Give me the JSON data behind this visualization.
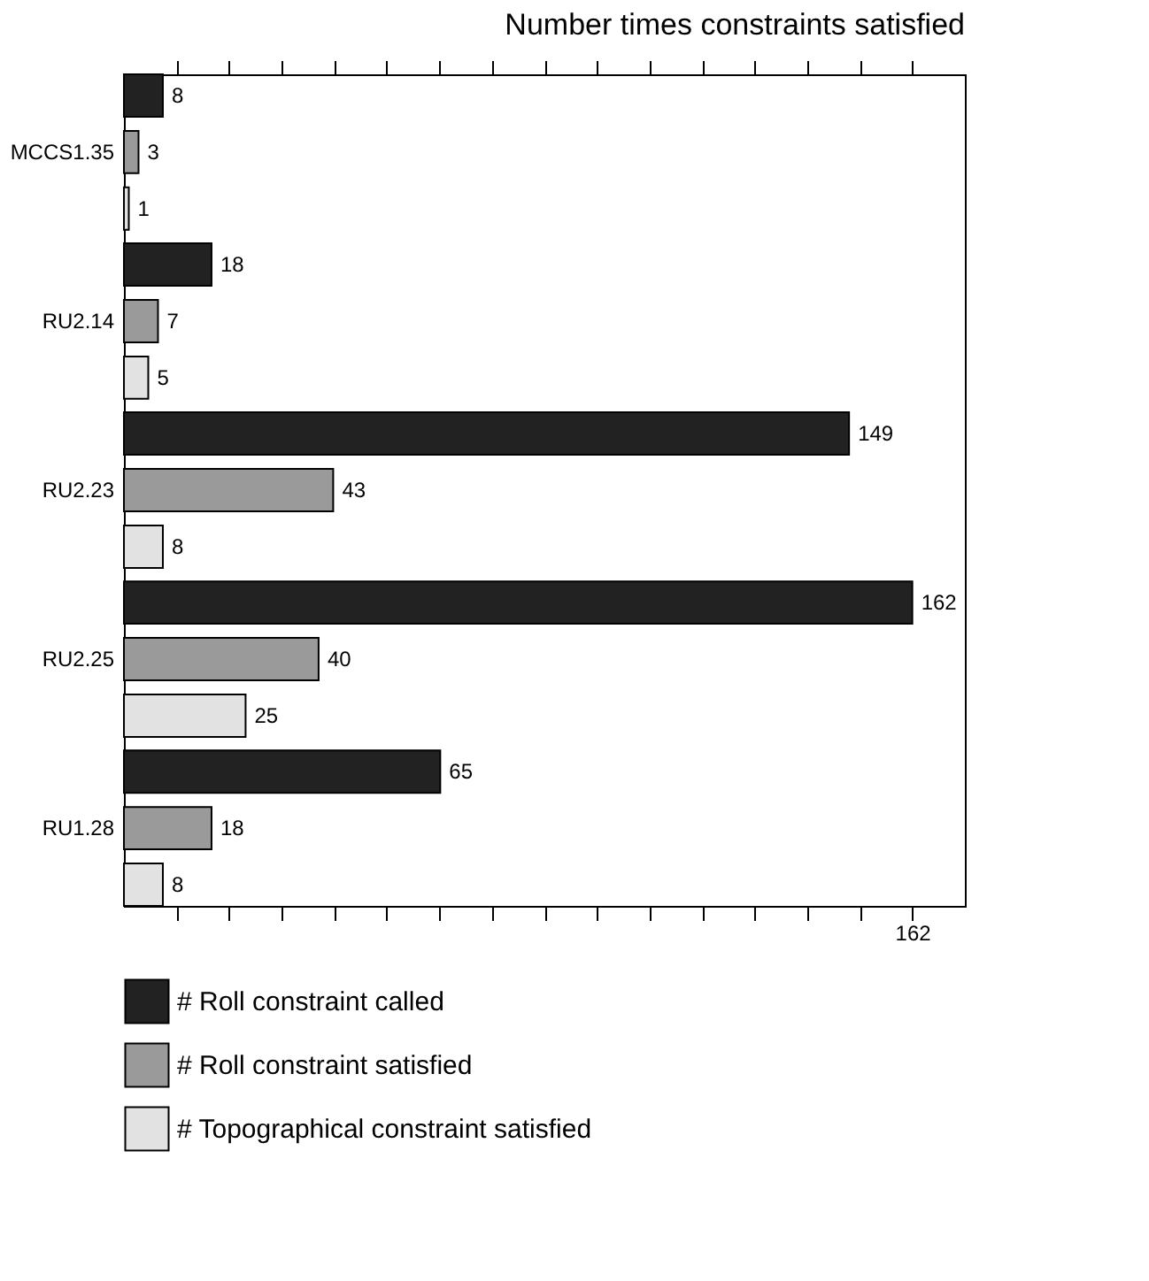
{
  "chart_data": {
    "type": "bar",
    "orientation": "horizontal",
    "title": "Number times constraints satisfied",
    "categories": [
      "MCCS1.35",
      "RU2.14",
      "RU2.23",
      "RU2.25",
      "RU1.28"
    ],
    "series": [
      {
        "name": "# Roll constraint called",
        "color": "#222222",
        "values": [
          8,
          18,
          149,
          162,
          65
        ]
      },
      {
        "name": "# Roll constraint satisfied",
        "color": "#9a9a9a",
        "values": [
          3,
          7,
          43,
          40,
          18
        ]
      },
      {
        "name": "# Topographical constraint satisfied",
        "color": "#e2e2e2",
        "values": [
          1,
          5,
          8,
          25,
          8
        ]
      }
    ],
    "xlim": [
      0,
      172.8
    ],
    "xticks": [
      {
        "value": 10.8,
        "label": null
      },
      {
        "value": 21.6,
        "label": null
      },
      {
        "value": 32.4,
        "label": null
      },
      {
        "value": 43.2,
        "label": null
      },
      {
        "value": 54,
        "label": null
      },
      {
        "value": 64.8,
        "label": null
      },
      {
        "value": 75.6,
        "label": null
      },
      {
        "value": 86.4,
        "label": null
      },
      {
        "value": 97.2,
        "label": null
      },
      {
        "value": 108,
        "label": null
      },
      {
        "value": 118.8,
        "label": null
      },
      {
        "value": 129.6,
        "label": null
      },
      {
        "value": 140.4,
        "label": null
      },
      {
        "value": 151.2,
        "label": null
      },
      162
    ],
    "data_labels": true,
    "legend": "bottom",
    "grid": false
  }
}
